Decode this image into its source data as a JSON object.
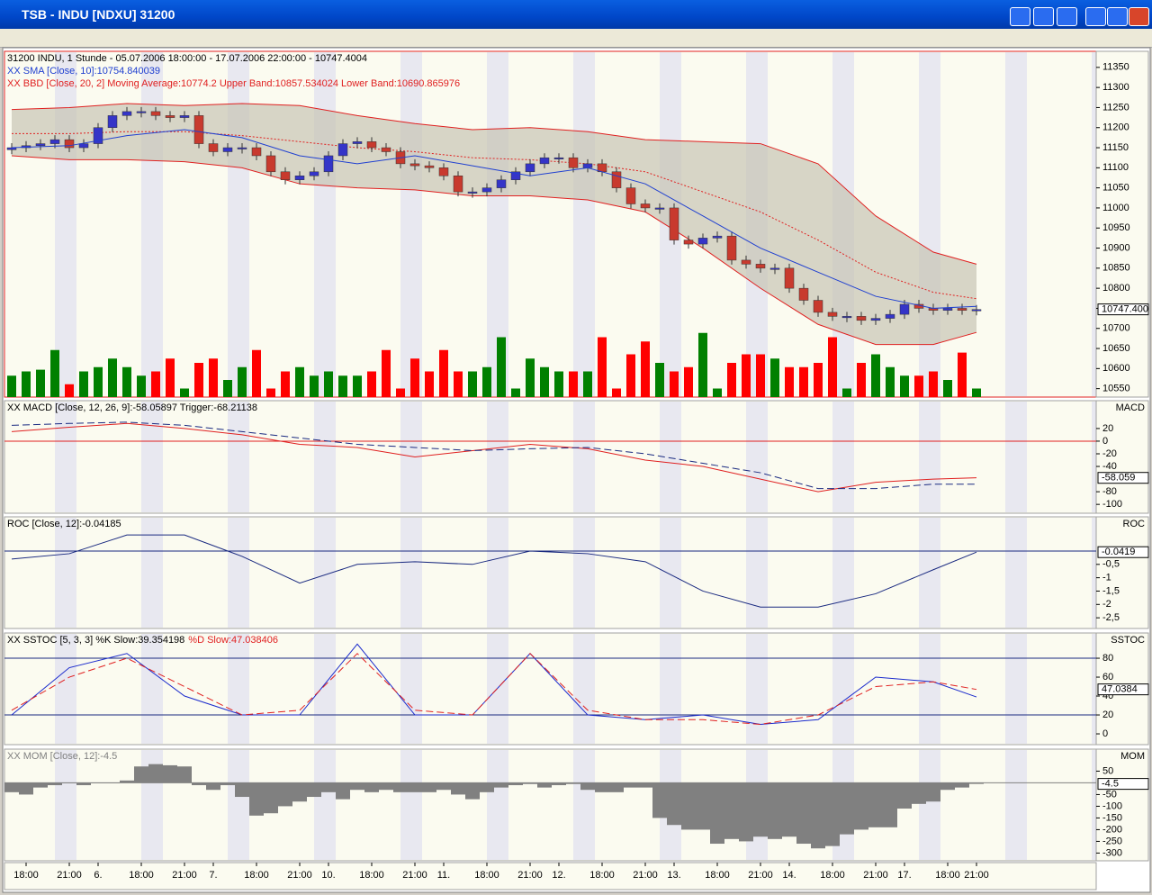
{
  "window": {
    "title": "TSB - INDU [NDXU] 31200"
  },
  "x_labels": [
    null,
    "18:00",
    null,
    null,
    "21:00",
    null,
    "6.",
    null,
    null,
    "18:00",
    null,
    null,
    "21:00",
    null,
    "7.",
    null,
    null,
    "18:00",
    null,
    null,
    "21:00",
    null,
    "10.",
    null,
    null,
    "18:00",
    null,
    null,
    "21:00",
    null,
    "11.",
    null,
    null,
    "18:00",
    null,
    null,
    "21:00",
    null,
    "12.",
    null,
    null,
    "18:00",
    null,
    null,
    "21:00",
    null,
    "13.",
    null,
    null,
    "18:00",
    null,
    null,
    "21:00",
    null,
    "14.",
    null,
    null,
    "18:00",
    null,
    null,
    "21:00",
    null,
    "17.",
    null,
    null,
    "18:00",
    null,
    "21:00"
  ],
  "line_index": [
    0,
    4,
    8,
    12,
    16,
    20,
    24,
    28,
    32,
    36,
    40,
    44,
    48,
    52,
    56,
    60,
    64,
    67
  ],
  "panels": [
    {
      "id": "price",
      "legend": [
        "31200  INDU, 1 Stunde - 05.07.2006 18:00:00 - 17.07.2006 22:00:00 - 10747.4004",
        "XX SMA [Close, 10]:10754.840039",
        "XX BBD [Close, 20, 2] Moving Average:10774.2 Upper Band:10857.534024 Lower Band:10690.865976"
      ],
      "ylim": [
        10529,
        11390
      ],
      "yticks": [
        11350,
        11300,
        11250,
        11200,
        11150,
        11100,
        11050,
        11000,
        10950,
        10900,
        10850,
        10800,
        10750,
        10700,
        10650,
        10600,
        10550
      ],
      "last": {
        "value": 10747.4,
        "label": "10747.400"
      },
      "candles": {
        "up_color": "#3535c8",
        "down_color": "#c83a2e",
        "open": [
          11145,
          11150,
          11155,
          11160,
          11170,
          11150,
          11160,
          11200,
          11230,
          11240,
          11240,
          11230,
          11225,
          11230,
          11160,
          11140,
          11150,
          11150,
          11130,
          11090,
          11070,
          11080,
          11090,
          11130,
          11160,
          11165,
          11150,
          11140,
          11110,
          11105,
          11100,
          11080,
          11040,
          11040,
          11050,
          11070,
          11090,
          11110,
          11125,
          11125,
          11100,
          11110,
          11090,
          11050,
          11010,
          11000,
          11000,
          10920,
          10910,
          10925,
          10930,
          10870,
          10860,
          10850,
          10850,
          10800,
          10770,
          10740,
          10730,
          10730,
          10720,
          10725,
          10735,
          10760,
          10750,
          10745,
          10750,
          10745
        ],
        "close": [
          11150,
          11155,
          11160,
          11170,
          11150,
          11160,
          11200,
          11230,
          11240,
          11240,
          11230,
          11225,
          11230,
          11160,
          11140,
          11150,
          11150,
          11130,
          11090,
          11070,
          11080,
          11090,
          11130,
          11160,
          11165,
          11150,
          11140,
          11110,
          11105,
          11100,
          11080,
          11040,
          11040,
          11050,
          11070,
          11090,
          11110,
          11125,
          11125,
          11100,
          11110,
          11090,
          11050,
          11010,
          11000,
          11000,
          10920,
          10910,
          10925,
          10930,
          10870,
          10860,
          10850,
          10850,
          10800,
          10770,
          10740,
          10730,
          10730,
          10720,
          10725,
          10735,
          10760,
          10750,
          10745,
          10750,
          10745,
          10747
        ]
      },
      "volume": {
        "ylim": [
          0,
          80
        ],
        "up_color": "#008000",
        "down_color": "#ff0000",
        "values": [
          25,
          30,
          32,
          55,
          15,
          30,
          35,
          45,
          35,
          25,
          30,
          45,
          10,
          40,
          45,
          20,
          35,
          55,
          10,
          30,
          35,
          25,
          30,
          25,
          25,
          30,
          55,
          10,
          45,
          30,
          55,
          30,
          30,
          35,
          70,
          10,
          45,
          35,
          30,
          30,
          30,
          70,
          10,
          50,
          65,
          40,
          30,
          35,
          75,
          10,
          40,
          50,
          50,
          45,
          35,
          35,
          40,
          70,
          10,
          40,
          50,
          35,
          25,
          25,
          30,
          20,
          52,
          10
        ]
      },
      "band": {
        "upper": [
          11245,
          11250,
          11260,
          11255,
          11260,
          11255,
          11230,
          11210,
          11195,
          11200,
          11190,
          11170,
          11165,
          11160,
          11110,
          10980,
          10890,
          10860
        ],
        "lower": [
          11130,
          11120,
          11120,
          11115,
          11100,
          11060,
          11050,
          11045,
          11030,
          11030,
          11020,
          10990,
          10900,
          10800,
          10710,
          10660,
          10660,
          10690
        ],
        "middle": [
          11185,
          11185,
          11190,
          11190,
          11180,
          11165,
          11150,
          11140,
          11125,
          11120,
          11110,
          11090,
          11040,
          10990,
          10920,
          10840,
          10790,
          10774
        ],
        "color": "#e02020"
      },
      "sma": {
        "values": [
          11150,
          11155,
          11180,
          11195,
          11175,
          11130,
          11110,
          11130,
          11105,
          11080,
          11100,
          11060,
          10980,
          10900,
          10840,
          10780,
          10750,
          10755
        ],
        "color": "#2040d0"
      }
    },
    {
      "id": "macd",
      "legend": [
        "XX MACD [Close, 12, 26, 9]:-58.05897 Trigger:-68.21138"
      ],
      "header": "MACD",
      "ylim": [
        -114,
        64
      ],
      "yticks": [
        20,
        0,
        -20,
        -40,
        -80,
        -100
      ],
      "last": {
        "value": -58.059,
        "label": "-58.059"
      },
      "hlines": [
        {
          "value": 0,
          "color": "#e02020"
        }
      ],
      "series": [
        {
          "values": [
            15,
            22,
            28,
            20,
            10,
            -5,
            -10,
            -25,
            -15,
            -5,
            -12,
            -30,
            -40,
            -60,
            -80,
            -65,
            -60,
            -58
          ],
          "color": "#e02020",
          "dash": false
        },
        {
          "values": [
            25,
            28,
            30,
            25,
            15,
            5,
            -5,
            -10,
            -15,
            -12,
            -10,
            -20,
            -35,
            -50,
            -75,
            -75,
            -68,
            -68
          ],
          "color": "#1a2a80",
          "dash": true
        }
      ]
    },
    {
      "id": "roc",
      "legend": [
        "ROC [Close, 12]:-0.04185"
      ],
      "header": "ROC",
      "ylim": [
        -2.9,
        1.28
      ],
      "yticks": [
        {
          "value": -0.5,
          "label": "-0,5"
        },
        -1,
        {
          "value": -1.5,
          "label": "-1,5"
        },
        -2,
        {
          "value": -2.5,
          "label": "-2,5"
        }
      ],
      "last": {
        "value": -0.0419,
        "label": "-0.0419"
      },
      "hlines": [
        {
          "value": 0,
          "color": "#1a2a80"
        }
      ],
      "series": [
        {
          "values": [
            -0.3,
            -0.1,
            0.6,
            0.6,
            -0.2,
            -1.2,
            -0.5,
            -0.4,
            -0.5,
            0,
            -0.1,
            -0.4,
            -1.5,
            -2.1,
            -2.1,
            -1.6,
            -0.7,
            -0.04
          ],
          "color": "#1a2a80",
          "dash": false
        }
      ]
    },
    {
      "id": "sstoc",
      "legend": [
        "XX SSTOC [5, 3, 3] %K Slow:39.354198",
        "%D Slow:47.038406"
      ],
      "header": "SSTOC",
      "ylim": [
        -11.4,
        106.7
      ],
      "yticks": [
        80,
        60,
        40,
        20,
        0
      ],
      "last": {
        "value": 47.0384,
        "label": "47.0384"
      },
      "hlines": [
        {
          "value": 80,
          "color": "#1a2a80"
        },
        {
          "value": 20,
          "color": "#1a2a80"
        }
      ],
      "series": [
        {
          "values": [
            20,
            70,
            85,
            40,
            20,
            20,
            95,
            20,
            20,
            85,
            20,
            15,
            20,
            10,
            15,
            60,
            55,
            39
          ],
          "color": "#1a2acc",
          "dash": false
        },
        {
          "values": [
            25,
            60,
            80,
            50,
            20,
            25,
            85,
            25,
            20,
            85,
            25,
            15,
            15,
            10,
            20,
            50,
            55,
            47
          ],
          "color": "#e02020",
          "dash": true
        }
      ]
    },
    {
      "id": "mom",
      "legend": [
        "XX MOM [Close, 12]:-4.5"
      ],
      "header": "MOM",
      "ylim": [
        -333,
        144
      ],
      "yticks": [
        50,
        -50,
        -100,
        -150,
        -200,
        -250,
        -300
      ],
      "last": {
        "value": -4.5,
        "label": "-4.5"
      },
      "hlines": [
        {
          "value": 0,
          "color": "#808080"
        }
      ],
      "bars": {
        "color": "#808080",
        "values": [
          -40,
          -50,
          -20,
          -10,
          0,
          -10,
          0,
          0,
          10,
          70,
          80,
          75,
          70,
          -10,
          -30,
          -10,
          -60,
          -140,
          -130,
          -100,
          -80,
          -60,
          -40,
          -70,
          -30,
          -40,
          -30,
          -40,
          -40,
          -40,
          -30,
          -50,
          -70,
          -40,
          -20,
          -10,
          -5,
          -20,
          -10,
          -5,
          -30,
          -40,
          -40,
          -20,
          -20,
          -150,
          -180,
          -200,
          -200,
          -260,
          -240,
          -250,
          -230,
          -240,
          -230,
          -260,
          -280,
          -270,
          -220,
          -200,
          -190,
          -190,
          -110,
          -90,
          -80,
          -30,
          -20,
          -4.5
        ]
      }
    }
  ]
}
